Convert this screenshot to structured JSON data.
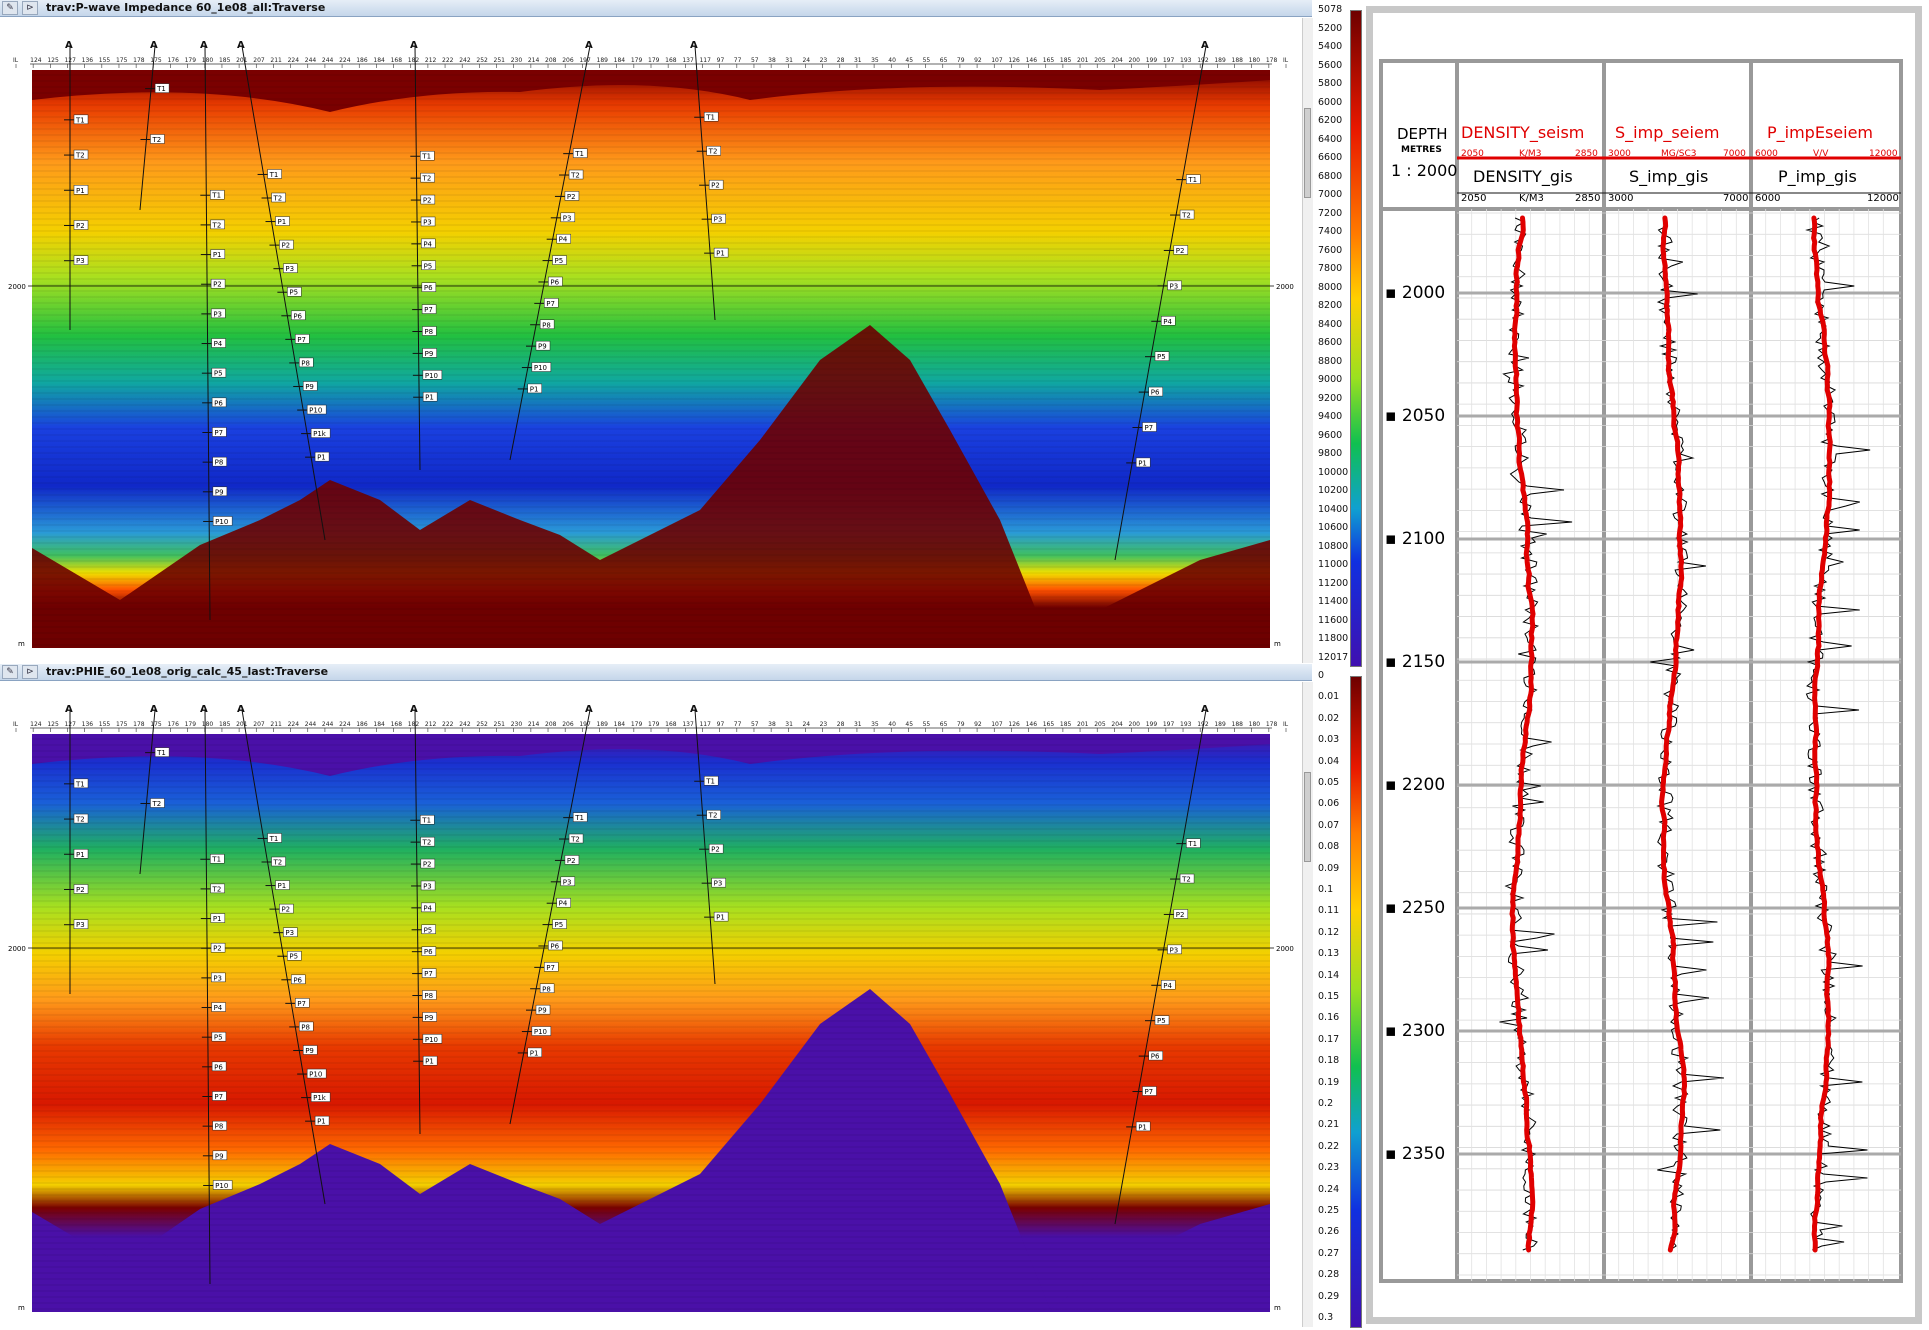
{
  "panes": [
    {
      "title": "trav:P-wave Impedance 60_1e08_all:Traverse",
      "depth_label": "2000",
      "axis_unit": "m",
      "colorbar": {
        "ticks": [
          "5078",
          "5200",
          "5400",
          "5600",
          "5800",
          "6000",
          "6200",
          "6400",
          "6600",
          "6800",
          "7000",
          "7200",
          "7400",
          "7600",
          "7800",
          "8000",
          "8200",
          "8400",
          "8600",
          "8800",
          "9000",
          "9200",
          "9400",
          "9600",
          "9800",
          "10000",
          "10200",
          "10400",
          "10600",
          "10800",
          "11000",
          "11200",
          "11400",
          "11600",
          "11800",
          "12017"
        ]
      }
    },
    {
      "title": "trav:PHIE_60_1e08_orig_calc_45_last:Traverse",
      "depth_label": "2000",
      "axis_unit": "m",
      "colorbar": {
        "ticks": [
          "0",
          "0.01",
          "0.02",
          "0.03",
          "0.04",
          "0.05",
          "0.06",
          "0.07",
          "0.08",
          "0.09",
          "0.1",
          "0.11",
          "0.12",
          "0.13",
          "0.14",
          "0.15",
          "0.16",
          "0.17",
          "0.18",
          "0.19",
          "0.2",
          "0.21",
          "0.22",
          "0.23",
          "0.24",
          "0.25",
          "0.26",
          "0.27",
          "0.28",
          "0.29",
          "0.3"
        ]
      }
    }
  ],
  "x_ticks": [
    "IL",
    "124",
    "125",
    "127",
    "136",
    "155",
    "175",
    "178",
    "175",
    "176",
    "179",
    "180",
    "185",
    "201",
    "207",
    "211",
    "224",
    "244",
    "244",
    "224",
    "186",
    "184",
    "168",
    "182",
    "212",
    "222",
    "242",
    "252",
    "251",
    "230",
    "214",
    "208",
    "206",
    "197",
    "189",
    "184",
    "179",
    "179",
    "168",
    "137",
    "117",
    "97",
    "77",
    "57",
    "38",
    "31",
    "24",
    "23",
    "28",
    "31",
    "35",
    "40",
    "45",
    "55",
    "65",
    "79",
    "92",
    "107",
    "126",
    "146",
    "165",
    "185",
    "201",
    "205",
    "204",
    "200",
    "199",
    "197",
    "193",
    "192",
    "189",
    "188",
    "180",
    "178",
    "IL"
  ],
  "well_markers": {
    "top": [
      "T1",
      "T2",
      "T1",
      "T2",
      "T1",
      "T2",
      "T1",
      "T2",
      "T1",
      "T2",
      "T1",
      "T2",
      "T1",
      "T2",
      "T1",
      "T2"
    ],
    "p_wave": [
      "P1",
      "P2",
      "P3",
      "P1",
      "P2",
      "P3",
      "P4",
      "P5",
      "P6",
      "P7",
      "P8",
      "P9",
      "P10",
      "P1",
      "P2",
      "P3",
      "P5",
      "P6",
      "P7",
      "P8",
      "P9",
      "P10",
      "P1k",
      "P1",
      "P2",
      "P3",
      "P4",
      "P5",
      "P6",
      "P7",
      "P8",
      "P9",
      "P10",
      "P1",
      "P2",
      "P3",
      "P4",
      "P5",
      "P6",
      "P7",
      "P8",
      "P9",
      "P10",
      "P1",
      "P2",
      "P3",
      "P1",
      "P2",
      "P3",
      "P4",
      "P5",
      "P6",
      "P7"
    ]
  },
  "log_panel": {
    "depth_header": "DEPTH",
    "depth_unit": "METRES",
    "scale": "1 : 2000",
    "tracks": [
      {
        "seism_name": "DENSITY_seism",
        "seism_min": "2050",
        "seism_unit": "K/M3",
        "seism_max": "2850",
        "gis_name": "DENSITY_gis",
        "gis_min": "2050",
        "gis_unit": "K/M3",
        "gis_max": "2850"
      },
      {
        "seism_name": "S_imp_seiem",
        "seism_min": "3000",
        "seism_unit": "MG/SC3",
        "seism_max": "7000",
        "gis_name": "S_imp_gis",
        "gis_min": "3000",
        "gis_unit": "",
        "gis_max": "7000"
      },
      {
        "seism_name": "P_impEseiem",
        "seism_min": "6000",
        "seism_unit": "V/V",
        "seism_max": "12000",
        "gis_name": "P_imp_gis",
        "gis_min": "6000",
        "gis_unit": "",
        "gis_max": "12000"
      }
    ],
    "depth_ticks": [
      "2000",
      "2050",
      "2100",
      "2150",
      "2200",
      "2250",
      "2300",
      "2350"
    ],
    "colors": {
      "seism": "#e00000",
      "gis": "#000000"
    }
  }
}
